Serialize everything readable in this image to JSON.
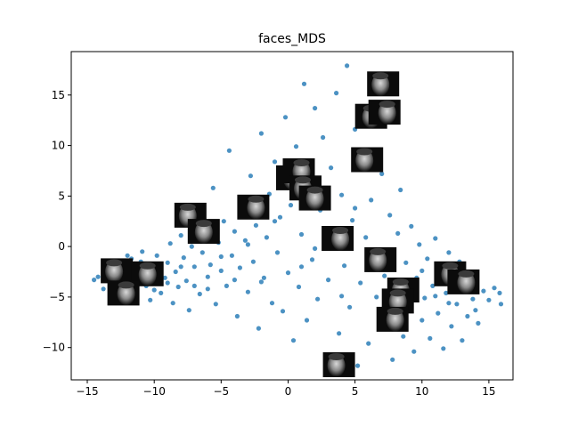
{
  "chart_data": {
    "type": "scatter",
    "title": "faces_MDS",
    "xlabel": "",
    "ylabel": "",
    "xlim": [
      -16.2,
      16.8
    ],
    "ylim": [
      -13.2,
      19.3
    ],
    "x_ticks": [
      -15,
      -10,
      -5,
      0,
      5,
      10,
      15
    ],
    "y_ticks": [
      -10,
      -5,
      0,
      5,
      10,
      15
    ],
    "x_tick_labels": [
      "−15",
      "−10",
      "−5",
      "0",
      "5",
      "10",
      "15"
    ],
    "y_tick_labels": [
      "−10",
      "−5",
      "0",
      "5",
      "10",
      "15"
    ],
    "grid": false,
    "legend": "none",
    "point_color": "#1f77b4",
    "point_alpha": 0.8,
    "points": [
      [
        -14.5,
        -3.3
      ],
      [
        -14.2,
        -3.0
      ],
      [
        -13.8,
        -4.2
      ],
      [
        -13.5,
        -2.6
      ],
      [
        -13.2,
        -3.8
      ],
      [
        -12.9,
        -1.8
      ],
      [
        -12.6,
        -4.9
      ],
      [
        -12.3,
        -2.2
      ],
      [
        -12.0,
        -3.5
      ],
      [
        -11.7,
        -1.2
      ],
      [
        -11.5,
        -4.4
      ],
      [
        -11.2,
        -2.8
      ],
      [
        -10.9,
        -0.5
      ],
      [
        -10.6,
        -3.9
      ],
      [
        -10.3,
        -5.3
      ],
      [
        -10.0,
        -2.0
      ],
      [
        -9.8,
        -0.9
      ],
      [
        -9.5,
        -4.6
      ],
      [
        -9.2,
        -3.1
      ],
      [
        -9.0,
        -1.6
      ],
      [
        -8.8,
        0.3
      ],
      [
        -8.6,
        -5.6
      ],
      [
        -8.4,
        -2.5
      ],
      [
        -8.2,
        -4.0
      ],
      [
        -8.0,
        1.1
      ],
      [
        -7.8,
        -1.1
      ],
      [
        -7.6,
        -3.4
      ],
      [
        -7.4,
        -6.3
      ],
      [
        -7.2,
        0.0
      ],
      [
        -7.0,
        -2.0
      ],
      [
        -6.8,
        3.2
      ],
      [
        -6.6,
        -4.7
      ],
      [
        -6.4,
        -0.6
      ],
      [
        -6.2,
        1.6
      ],
      [
        -6.0,
        -3.0
      ],
      [
        -5.8,
        -1.8
      ],
      [
        -5.6,
        5.8
      ],
      [
        -5.4,
        -5.7
      ],
      [
        -5.2,
        0.4
      ],
      [
        -5.0,
        -2.4
      ],
      [
        -4.8,
        2.5
      ],
      [
        -4.6,
        -3.9
      ],
      [
        -4.4,
        9.5
      ],
      [
        -4.2,
        -0.9
      ],
      [
        -4.0,
        1.5
      ],
      [
        -3.8,
        -6.9
      ],
      [
        -3.6,
        -2.1
      ],
      [
        -3.4,
        4.6
      ],
      [
        -3.2,
        0.6
      ],
      [
        -3.0,
        -4.5
      ],
      [
        -2.8,
        7.0
      ],
      [
        -2.6,
        -1.5
      ],
      [
        -2.4,
        2.1
      ],
      [
        -2.2,
        -8.1
      ],
      [
        -2.0,
        11.2
      ],
      [
        -1.8,
        -3.1
      ],
      [
        -1.6,
        0.9
      ],
      [
        -1.4,
        5.2
      ],
      [
        -1.2,
        -5.6
      ],
      [
        -1.0,
        8.4
      ],
      [
        -0.8,
        -0.6
      ],
      [
        -0.6,
        2.9
      ],
      [
        -0.4,
        -6.4
      ],
      [
        -0.2,
        12.8
      ],
      [
        0.0,
        -2.6
      ],
      [
        0.2,
        4.1
      ],
      [
        0.4,
        -9.3
      ],
      [
        0.6,
        9.9
      ],
      [
        0.8,
        -4.0
      ],
      [
        1.0,
        1.2
      ],
      [
        1.2,
        16.1
      ],
      [
        1.4,
        -7.3
      ],
      [
        1.6,
        6.3
      ],
      [
        1.8,
        -1.3
      ],
      [
        2.0,
        13.7
      ],
      [
        2.2,
        -5.2
      ],
      [
        2.4,
        3.6
      ],
      [
        2.6,
        10.8
      ],
      [
        2.8,
        -10.9
      ],
      [
        3.0,
        -3.3
      ],
      [
        3.2,
        7.8
      ],
      [
        3.4,
        0.3
      ],
      [
        3.6,
        15.2
      ],
      [
        3.8,
        -8.6
      ],
      [
        4.0,
        5.1
      ],
      [
        4.2,
        -1.9
      ],
      [
        4.4,
        17.9
      ],
      [
        4.6,
        -6.0
      ],
      [
        4.8,
        2.6
      ],
      [
        5.0,
        11.6
      ],
      [
        5.2,
        -11.8
      ],
      [
        5.4,
        -3.6
      ],
      [
        5.6,
        8.7
      ],
      [
        5.8,
        0.9
      ],
      [
        6.0,
        -9.6
      ],
      [
        6.2,
        4.6
      ],
      [
        6.4,
        13.2
      ],
      [
        6.6,
        -5.0
      ],
      [
        6.8,
        -0.4
      ],
      [
        7.0,
        7.2
      ],
      [
        7.2,
        -2.9
      ],
      [
        7.4,
        -7.6
      ],
      [
        7.6,
        3.1
      ],
      [
        7.8,
        -11.2
      ],
      [
        8.0,
        -4.4
      ],
      [
        8.2,
        1.3
      ],
      [
        8.4,
        5.6
      ],
      [
        8.6,
        -8.9
      ],
      [
        8.8,
        -1.6
      ],
      [
        9.0,
        -6.3
      ],
      [
        9.2,
        2.0
      ],
      [
        9.4,
        -10.4
      ],
      [
        9.6,
        -3.1
      ],
      [
        9.8,
        0.2
      ],
      [
        10.0,
        -7.3
      ],
      [
        10.2,
        -5.1
      ],
      [
        10.4,
        -1.2
      ],
      [
        10.6,
        -9.1
      ],
      [
        10.8,
        -3.9
      ],
      [
        11.0,
        0.8
      ],
      [
        11.2,
        -6.6
      ],
      [
        11.4,
        -2.3
      ],
      [
        11.6,
        -10.1
      ],
      [
        11.8,
        -4.6
      ],
      [
        12.0,
        -0.6
      ],
      [
        12.2,
        -7.9
      ],
      [
        12.4,
        -3.3
      ],
      [
        12.6,
        -5.7
      ],
      [
        12.8,
        -1.5
      ],
      [
        13.0,
        -9.3
      ],
      [
        13.2,
        -4.1
      ],
      [
        13.4,
        -6.9
      ],
      [
        13.6,
        -2.6
      ],
      [
        13.8,
        -5.2
      ],
      [
        14.0,
        -3.6
      ],
      [
        14.2,
        -7.6
      ],
      [
        14.6,
        -4.4
      ],
      [
        15.0,
        -5.3
      ],
      [
        15.4,
        -4.1
      ],
      [
        15.8,
        -4.6
      ],
      [
        15.9,
        -5.7
      ],
      [
        -13.0,
        -4.0
      ],
      [
        -11.0,
        -1.5
      ],
      [
        -9.0,
        -3.6
      ],
      [
        -7.0,
        -3.9
      ],
      [
        -5.0,
        -1.0
      ],
      [
        -3.0,
        0.2
      ],
      [
        -1.0,
        2.5
      ],
      [
        1.0,
        -2.0
      ],
      [
        3.0,
        5.5
      ],
      [
        5.0,
        3.8
      ],
      [
        7.0,
        -1.0
      ],
      [
        9.0,
        -3.5
      ],
      [
        11.0,
        -4.9
      ],
      [
        13.0,
        -2.0
      ],
      [
        -12.0,
        -0.9
      ],
      [
        -10.0,
        -4.3
      ],
      [
        -8.0,
        -2.0
      ],
      [
        -6.0,
        -4.2
      ],
      [
        -4.0,
        -3.3
      ],
      [
        -2.0,
        -3.5
      ],
      [
        0.0,
        6.1
      ],
      [
        2.0,
        -0.2
      ],
      [
        4.0,
        -4.9
      ],
      [
        6.0,
        -2.3
      ],
      [
        8.0,
        -7.0
      ],
      [
        10.0,
        -2.4
      ],
      [
        12.0,
        -5.6
      ],
      [
        14.0,
        -6.3
      ]
    ],
    "thumbnails": [
      {
        "x": 7.1,
        "y": 16.1,
        "label": "face"
      },
      {
        "x": 6.2,
        "y": 12.9,
        "label": "face"
      },
      {
        "x": 7.2,
        "y": 13.3,
        "label": "face"
      },
      {
        "x": 5.9,
        "y": 8.6,
        "label": "face"
      },
      {
        "x": 0.3,
        "y": 6.8,
        "label": "face"
      },
      {
        "x": 0.8,
        "y": 7.5,
        "label": "face"
      },
      {
        "x": 1.3,
        "y": 5.8,
        "label": "face"
      },
      {
        "x": 2.0,
        "y": 4.8,
        "label": "face"
      },
      {
        "x": -2.6,
        "y": 3.9,
        "label": "face"
      },
      {
        "x": -7.3,
        "y": 3.1,
        "label": "face"
      },
      {
        "x": -6.3,
        "y": 1.5,
        "label": "face"
      },
      {
        "x": 3.7,
        "y": 0.8,
        "label": "face"
      },
      {
        "x": 6.9,
        "y": -1.3,
        "label": "face"
      },
      {
        "x": 12.1,
        "y": -2.7,
        "label": "face"
      },
      {
        "x": 13.1,
        "y": -3.5,
        "label": "face"
      },
      {
        "x": -12.8,
        "y": -2.4,
        "label": "face"
      },
      {
        "x": -10.5,
        "y": -2.7,
        "label": "face"
      },
      {
        "x": -12.3,
        "y": -4.6,
        "label": "face"
      },
      {
        "x": 8.6,
        "y": -4.3,
        "label": "face"
      },
      {
        "x": 8.2,
        "y": -5.4,
        "label": "face"
      },
      {
        "x": 7.8,
        "y": -7.2,
        "label": "face"
      },
      {
        "x": 3.8,
        "y": -11.7,
        "label": "face"
      }
    ]
  }
}
